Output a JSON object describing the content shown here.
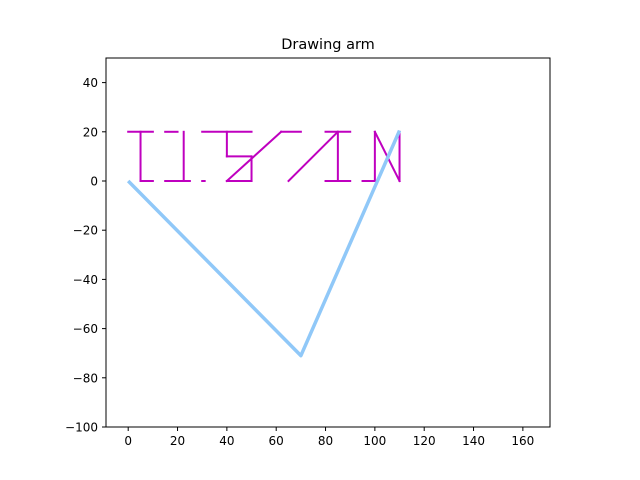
{
  "chart_data": {
    "type": "line",
    "title": "Drawing arm",
    "xlabel": "",
    "ylabel": "",
    "xlim": [
      -9,
      171
    ],
    "ylim": [
      -100,
      50
    ],
    "x_ticks": [
      0,
      20,
      40,
      60,
      80,
      100,
      120,
      140,
      160
    ],
    "y_ticks": [
      -100,
      -80,
      -60,
      -40,
      -20,
      0,
      20,
      40
    ],
    "grid": false,
    "arm": {
      "color": "#90c8f8",
      "points": [
        [
          0,
          0
        ],
        [
          70,
          -71
        ],
        [
          110,
          20.5
        ]
      ]
    },
    "drawing": {
      "color": "#bf00bf",
      "segments": [
        [
          [
            0,
            20
          ],
          [
            10,
            20
          ]
        ],
        [
          [
            5,
            20
          ],
          [
            5,
            0
          ]
        ],
        [
          [
            5,
            0
          ],
          [
            10,
            0
          ]
        ],
        [
          [
            15,
            20
          ],
          [
            20,
            20
          ]
        ],
        [
          [
            15,
            0
          ],
          [
            25,
            0
          ]
        ],
        [
          [
            22.5,
            20
          ],
          [
            22.5,
            0
          ]
        ],
        [
          [
            30,
            20
          ],
          [
            50,
            20
          ]
        ],
        [
          [
            40,
            20
          ],
          [
            40,
            10
          ]
        ],
        [
          [
            40,
            10
          ],
          [
            50,
            10
          ]
        ],
        [
          [
            50,
            10
          ],
          [
            50,
            0
          ]
        ],
        [
          [
            40,
            0
          ],
          [
            50,
            0
          ]
        ],
        [
          [
            30,
            0
          ],
          [
            31,
            0
          ]
        ],
        [
          [
            40,
            0
          ],
          [
            62,
            20
          ]
        ],
        [
          [
            62,
            20
          ],
          [
            70,
            20
          ]
        ],
        [
          [
            65,
            0
          ],
          [
            85,
            20
          ]
        ],
        [
          [
            80,
            20
          ],
          [
            90,
            20
          ]
        ],
        [
          [
            85,
            20
          ],
          [
            85,
            0
          ]
        ],
        [
          [
            80,
            0
          ],
          [
            90,
            0
          ]
        ],
        [
          [
            100,
            20
          ],
          [
            100,
            0
          ]
        ],
        [
          [
            95,
            0
          ],
          [
            100,
            0
          ]
        ],
        [
          [
            100,
            20
          ],
          [
            110,
            0
          ]
        ],
        [
          [
            110,
            20
          ],
          [
            110,
            0
          ]
        ]
      ]
    }
  }
}
